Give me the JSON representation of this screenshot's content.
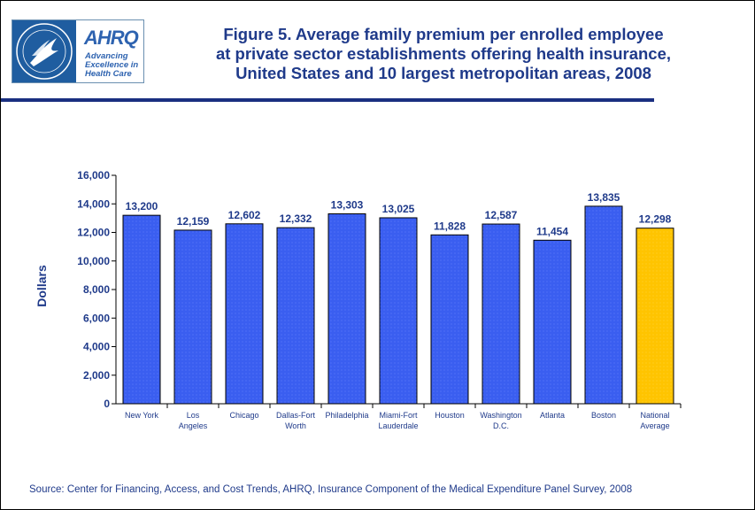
{
  "logo": {
    "brand": "AHRQ",
    "tagline": [
      "Advancing",
      "Excellence in",
      "Health Care"
    ]
  },
  "title_lines": [
    "Figure 5. Average family premium per enrolled employee",
    "at private sector establishments offering health insurance,",
    "United States and 10 largest metropolitan areas, 2008"
  ],
  "source": "Source: Center for Financing, Access, and Cost Trends, AHRQ, Insurance Component of the Medical Expenditure Panel Survey, 2008",
  "colors": {
    "title": "#1f3a8a",
    "bar": "#3a5ef0",
    "bar_highlight": "#ffc400",
    "rule": "#1a2f80"
  },
  "chart_data": {
    "type": "bar",
    "title": "Figure 5. Average family premium per enrolled employee at private sector establishments offering health insurance, United States and 10 largest metropolitan areas, 2008",
    "ylabel": "Dollars",
    "xlabel": "",
    "ylim": [
      0,
      16000
    ],
    "yticks": [
      0,
      2000,
      4000,
      6000,
      8000,
      10000,
      12000,
      14000,
      16000
    ],
    "ytick_labels": [
      "0",
      "2,000",
      "4,000",
      "6,000",
      "8,000",
      "10,000",
      "12,000",
      "14,000",
      "16,000"
    ],
    "grid": false,
    "categories": [
      [
        "New York"
      ],
      [
        "Los",
        "Angeles"
      ],
      [
        "Chicago"
      ],
      [
        "Dallas-Fort",
        "Worth"
      ],
      [
        "Philadelphia"
      ],
      [
        "Miami-Fort",
        "Lauderdale"
      ],
      [
        "Houston"
      ],
      [
        "Washington",
        "D.C."
      ],
      [
        "Atlanta"
      ],
      [
        "Boston"
      ],
      [
        "National",
        "Average"
      ]
    ],
    "values": [
      13200,
      12159,
      12602,
      12332,
      13303,
      13025,
      11828,
      12587,
      11454,
      13835,
      12298
    ],
    "value_labels": [
      "13,200",
      "12,159",
      "12,602",
      "12,332",
      "13,303",
      "13,025",
      "11,828",
      "12,587",
      "11,454",
      "13,835",
      "12,298"
    ],
    "highlight_index": 10
  }
}
